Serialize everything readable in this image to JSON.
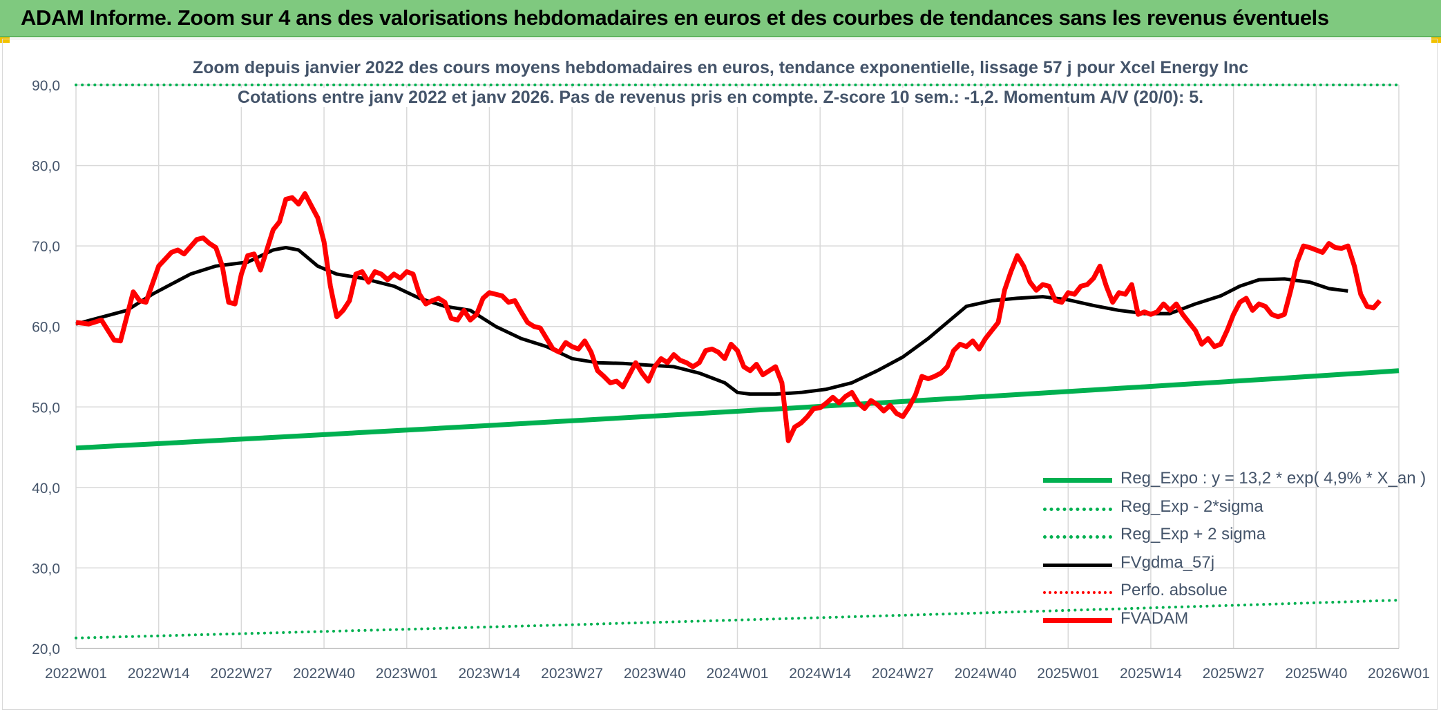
{
  "header": {
    "title": "ADAM Informe. Zoom sur 4 ans des valorisations hebdomadaires en euros et des courbes de tendances sans les revenus éventuels"
  },
  "chart_data": {
    "type": "line",
    "title": "Zoom depuis janvier 2022 des cours moyens hebdomadaires en euros, tendance exponentielle, lissage 57 j pour Xcel Energy Inc",
    "subtitle": "Cotations entre janv 2022 et janv 2026. Pas de revenus pris en compte. Z-score 10 sem.: -1,2. Momentum A/V (20/0): 5.",
    "xlabel": "",
    "ylabel": "",
    "ylim": [
      20,
      90
    ],
    "yticks": [
      "20,0",
      "30,0",
      "40,0",
      "50,0",
      "60,0",
      "70,0",
      "80,0",
      "90,0"
    ],
    "xtick_labels": [
      "2022W01",
      "2022W14",
      "2022W27",
      "2022W40",
      "2023W01",
      "2023W14",
      "2023W27",
      "2023W40",
      "2024W01",
      "2024W14",
      "2024W27",
      "2024W40",
      "2025W01",
      "2025W14",
      "2025W27",
      "2025W40",
      "2026W01"
    ],
    "weeks": 209,
    "grid": true,
    "legend_position": "bottom-right",
    "series": [
      {
        "name": "Reg_Expo : y = 13,2 * exp( 4,9% *  X_an )",
        "color": "#00b050",
        "style": "solid",
        "width": 7,
        "start": 44.9,
        "end": 54.5
      },
      {
        "name": "Reg_Exp - 2*sigma",
        "color": "#00b050",
        "style": "dotted",
        "width": 4,
        "start": 21.3,
        "end": 26.0
      },
      {
        "name": "Reg_Exp + 2 sigma",
        "color": "#00b050",
        "style": "dotted",
        "width": 4,
        "start": 90.0,
        "end": 90.0
      },
      {
        "name": "FVgdma_57j",
        "color": "#000000",
        "style": "solid",
        "width": 5,
        "anchors": [
          [
            0,
            60.3
          ],
          [
            8,
            62.0
          ],
          [
            12,
            64.0
          ],
          [
            18,
            66.5
          ],
          [
            22,
            67.5
          ],
          [
            27,
            68.0
          ],
          [
            31,
            69.5
          ],
          [
            33,
            69.8
          ],
          [
            35,
            69.5
          ],
          [
            38,
            67.5
          ],
          [
            41,
            66.5
          ],
          [
            45,
            66.0
          ],
          [
            50,
            65.0
          ],
          [
            54,
            63.5
          ],
          [
            58,
            62.5
          ],
          [
            62,
            62.0
          ],
          [
            66,
            60.0
          ],
          [
            70,
            58.5
          ],
          [
            74,
            57.5
          ],
          [
            78,
            56.0
          ],
          [
            82,
            55.5
          ],
          [
            86,
            55.4
          ],
          [
            90,
            55.2
          ],
          [
            94,
            55.0
          ],
          [
            98,
            54.2
          ],
          [
            102,
            53.0
          ],
          [
            104,
            51.8
          ],
          [
            106,
            51.6
          ],
          [
            110,
            51.6
          ],
          [
            114,
            51.8
          ],
          [
            118,
            52.2
          ],
          [
            122,
            53.0
          ],
          [
            126,
            54.5
          ],
          [
            130,
            56.2
          ],
          [
            134,
            58.5
          ],
          [
            137,
            60.5
          ],
          [
            140,
            62.5
          ],
          [
            144,
            63.2
          ],
          [
            148,
            63.5
          ],
          [
            152,
            63.7
          ],
          [
            156,
            63.3
          ],
          [
            160,
            62.6
          ],
          [
            164,
            62.0
          ],
          [
            168,
            61.6
          ],
          [
            172,
            61.6
          ],
          [
            176,
            62.8
          ],
          [
            180,
            63.8
          ],
          [
            183,
            65.0
          ],
          [
            186,
            65.8
          ],
          [
            190,
            65.9
          ],
          [
            194,
            65.5
          ],
          [
            197,
            64.7
          ],
          [
            200,
            64.4
          ]
        ]
      },
      {
        "name": "Perfo. absolue",
        "color": "#ff0000",
        "style": "dotted",
        "width": 4
      },
      {
        "name": "FVADAM",
        "color": "#ff0000",
        "style": "solid",
        "width": 7,
        "anchors": [
          [
            0,
            60.5
          ],
          [
            2,
            60.3
          ],
          [
            4,
            60.8
          ],
          [
            6,
            58.3
          ],
          [
            7,
            58.2
          ],
          [
            9,
            64.3
          ],
          [
            10,
            63.2
          ],
          [
            11,
            63.0
          ],
          [
            13,
            67.5
          ],
          [
            15,
            69.2
          ],
          [
            16,
            69.5
          ],
          [
            17,
            69.0
          ],
          [
            19,
            70.8
          ],
          [
            20,
            71.0
          ],
          [
            21,
            70.3
          ],
          [
            22,
            69.8
          ],
          [
            23,
            67.5
          ],
          [
            24,
            63.0
          ],
          [
            25,
            62.8
          ],
          [
            26,
            66.5
          ],
          [
            27,
            68.8
          ],
          [
            28,
            69.0
          ],
          [
            29,
            67.0
          ],
          [
            30,
            69.5
          ],
          [
            31,
            72.0
          ],
          [
            32,
            73.0
          ],
          [
            33,
            75.8
          ],
          [
            34,
            76.0
          ],
          [
            35,
            75.2
          ],
          [
            36,
            76.5
          ],
          [
            37,
            75.0
          ],
          [
            38,
            73.5
          ],
          [
            39,
            70.5
          ],
          [
            40,
            65.0
          ],
          [
            41,
            61.2
          ],
          [
            42,
            62.0
          ],
          [
            43,
            63.2
          ],
          [
            44,
            66.5
          ],
          [
            45,
            66.8
          ],
          [
            46,
            65.5
          ],
          [
            47,
            66.8
          ],
          [
            48,
            66.5
          ],
          [
            49,
            65.8
          ],
          [
            50,
            66.5
          ],
          [
            51,
            66.0
          ],
          [
            52,
            66.8
          ],
          [
            53,
            66.5
          ],
          [
            54,
            64.0
          ],
          [
            55,
            62.8
          ],
          [
            56,
            63.2
          ],
          [
            57,
            63.5
          ],
          [
            58,
            63.0
          ],
          [
            59,
            61.0
          ],
          [
            60,
            60.8
          ],
          [
            61,
            62.0
          ],
          [
            62,
            60.8
          ],
          [
            63,
            61.5
          ],
          [
            64,
            63.5
          ],
          [
            65,
            64.2
          ],
          [
            66,
            64.0
          ],
          [
            67,
            63.8
          ],
          [
            68,
            63.0
          ],
          [
            69,
            63.2
          ],
          [
            70,
            61.8
          ],
          [
            71,
            60.5
          ],
          [
            72,
            60.0
          ],
          [
            73,
            59.8
          ],
          [
            74,
            58.5
          ],
          [
            75,
            57.2
          ],
          [
            76,
            56.8
          ],
          [
            77,
            58.0
          ],
          [
            78,
            57.5
          ],
          [
            79,
            57.2
          ],
          [
            80,
            58.2
          ],
          [
            81,
            56.8
          ],
          [
            82,
            54.5
          ],
          [
            83,
            53.8
          ],
          [
            84,
            53.0
          ],
          [
            85,
            53.2
          ],
          [
            86,
            52.5
          ],
          [
            87,
            54.0
          ],
          [
            88,
            55.5
          ],
          [
            89,
            54.2
          ],
          [
            90,
            53.2
          ],
          [
            91,
            55.0
          ],
          [
            92,
            56.0
          ],
          [
            93,
            55.5
          ],
          [
            94,
            56.5
          ],
          [
            95,
            55.8
          ],
          [
            96,
            55.5
          ],
          [
            97,
            55.0
          ],
          [
            98,
            55.5
          ],
          [
            99,
            57.0
          ],
          [
            100,
            57.2
          ],
          [
            101,
            56.8
          ],
          [
            102,
            56.0
          ],
          [
            103,
            57.8
          ],
          [
            104,
            57.0
          ],
          [
            105,
            55.0
          ],
          [
            106,
            54.5
          ],
          [
            107,
            55.3
          ],
          [
            108,
            54.0
          ],
          [
            109,
            54.5
          ],
          [
            110,
            55.0
          ],
          [
            111,
            53.0
          ],
          [
            112,
            45.8
          ],
          [
            113,
            47.5
          ],
          [
            114,
            48.0
          ],
          [
            115,
            48.8
          ],
          [
            116,
            49.8
          ],
          [
            117,
            49.9
          ],
          [
            118,
            50.5
          ],
          [
            119,
            51.2
          ],
          [
            120,
            50.5
          ],
          [
            121,
            51.3
          ],
          [
            122,
            51.8
          ],
          [
            123,
            50.5
          ],
          [
            124,
            49.8
          ],
          [
            125,
            50.8
          ],
          [
            126,
            50.3
          ],
          [
            127,
            49.5
          ],
          [
            128,
            50.2
          ],
          [
            129,
            49.2
          ],
          [
            130,
            48.8
          ],
          [
            131,
            50.0
          ],
          [
            132,
            51.5
          ],
          [
            133,
            53.8
          ],
          [
            134,
            53.5
          ],
          [
            135,
            53.8
          ],
          [
            136,
            54.2
          ],
          [
            137,
            55.0
          ],
          [
            138,
            57.0
          ],
          [
            139,
            57.8
          ],
          [
            140,
            57.5
          ],
          [
            141,
            58.2
          ],
          [
            142,
            57.2
          ],
          [
            143,
            58.5
          ],
          [
            144,
            59.5
          ],
          [
            145,
            60.5
          ],
          [
            146,
            64.5
          ],
          [
            147,
            66.8
          ],
          [
            148,
            68.8
          ],
          [
            149,
            67.5
          ],
          [
            150,
            65.5
          ],
          [
            151,
            64.5
          ],
          [
            152,
            65.2
          ],
          [
            153,
            65.0
          ],
          [
            154,
            63.2
          ],
          [
            155,
            63.0
          ],
          [
            156,
            64.2
          ],
          [
            157,
            64.0
          ],
          [
            158,
            65.0
          ],
          [
            159,
            65.2
          ],
          [
            160,
            66.0
          ],
          [
            161,
            67.5
          ],
          [
            162,
            65.0
          ],
          [
            163,
            63.0
          ],
          [
            164,
            64.2
          ],
          [
            165,
            64.0
          ],
          [
            166,
            65.2
          ],
          [
            167,
            61.5
          ],
          [
            168,
            61.8
          ],
          [
            169,
            61.5
          ],
          [
            170,
            61.8
          ],
          [
            171,
            62.8
          ],
          [
            172,
            62.0
          ],
          [
            173,
            62.8
          ],
          [
            174,
            61.5
          ],
          [
            175,
            60.5
          ],
          [
            176,
            59.5
          ],
          [
            177,
            57.8
          ],
          [
            178,
            58.5
          ],
          [
            179,
            57.5
          ],
          [
            180,
            57.8
          ],
          [
            181,
            59.5
          ],
          [
            182,
            61.5
          ],
          [
            183,
            63.0
          ],
          [
            184,
            63.5
          ],
          [
            185,
            62.0
          ],
          [
            186,
            62.8
          ],
          [
            187,
            62.5
          ],
          [
            188,
            61.5
          ],
          [
            189,
            61.2
          ],
          [
            190,
            61.5
          ],
          [
            191,
            64.5
          ],
          [
            192,
            68.0
          ],
          [
            193,
            70.0
          ],
          [
            194,
            69.8
          ],
          [
            195,
            69.5
          ],
          [
            196,
            69.2
          ],
          [
            197,
            70.3
          ],
          [
            198,
            69.8
          ],
          [
            199,
            69.7
          ],
          [
            200,
            70.0
          ],
          [
            201,
            67.5
          ],
          [
            202,
            64.0
          ],
          [
            203,
            62.5
          ],
          [
            204,
            62.3
          ],
          [
            205,
            63.2
          ]
        ]
      }
    ]
  }
}
